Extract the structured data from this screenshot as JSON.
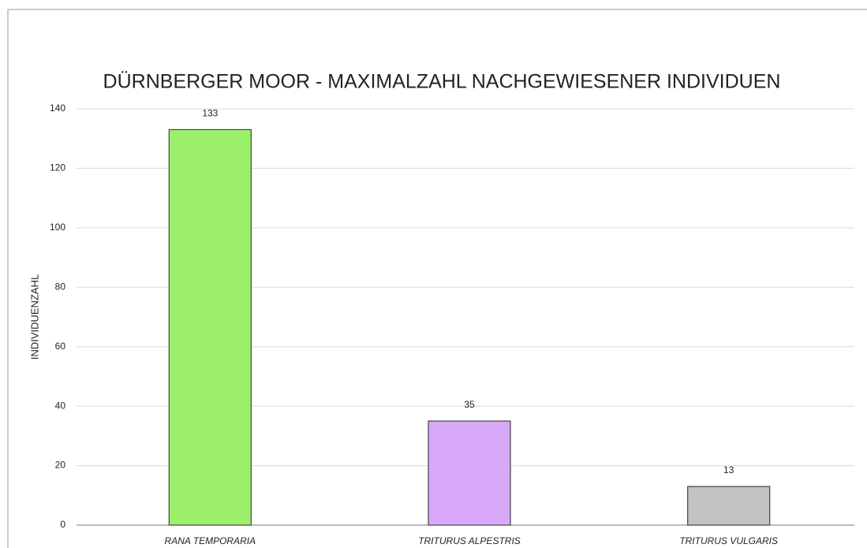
{
  "chart_data": {
    "type": "bar",
    "title": "DÜRNBERGER MOOR - MAXIMALZAHL NACHGEWIESENER INDIVIDUEN",
    "y_label": "INDIVIDUENZAHL",
    "categories": [
      "RANA TEMPORARIA",
      "TRITURUS ALPESTRIS",
      "TRITURUS VULGARIS"
    ],
    "values": [
      133,
      35,
      13
    ],
    "colors": [
      "#9df06b",
      "#d7a9f8",
      "#c2c2c2"
    ],
    "ylim": [
      0,
      140
    ],
    "yticks": [
      0,
      20,
      40,
      60,
      80,
      100,
      120,
      140
    ],
    "grid": true
  }
}
